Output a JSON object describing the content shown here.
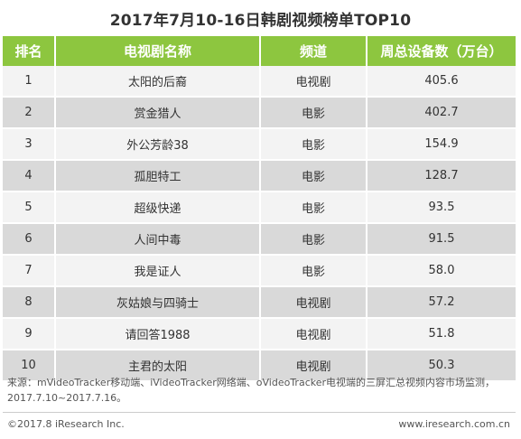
{
  "title": "2017年7月10-16日韩剧视频榜单TOP10",
  "headers": {
    "rank": "排名",
    "name": "电视剧名称",
    "channel": "频道",
    "count": "周总设备数（万台）"
  },
  "rows": [
    {
      "rank": "1",
      "name": "太阳的后裔",
      "channel": "电视剧",
      "count": "405.6"
    },
    {
      "rank": "2",
      "name": "赏金猎人",
      "channel": "电影",
      "count": "402.7"
    },
    {
      "rank": "3",
      "name": "外公芳龄38",
      "channel": "电影",
      "count": "154.9"
    },
    {
      "rank": "4",
      "name": "孤胆特工",
      "channel": "电影",
      "count": "128.7"
    },
    {
      "rank": "5",
      "name": "超级快递",
      "channel": "电影",
      "count": "93.5"
    },
    {
      "rank": "6",
      "name": "人间中毒",
      "channel": "电影",
      "count": "91.5"
    },
    {
      "rank": "7",
      "name": "我是证人",
      "channel": "电影",
      "count": "58.0"
    },
    {
      "rank": "8",
      "name": "灰姑娘与四骑士",
      "channel": "电视剧",
      "count": "57.2"
    },
    {
      "rank": "9",
      "name": "请回答1988",
      "channel": "电视剧",
      "count": "51.8"
    },
    {
      "rank": "10",
      "name": "主君的太阳",
      "channel": "电视剧",
      "count": "50.3"
    }
  ],
  "source_line1": "来源：mVideoTracker移动端、iVideoTracker网络端、oVideoTracker电视端的三屏汇总视频内容市场监测，",
  "source_line2": "2017.7.10~2017.7.16。",
  "copyright": "©2017.8 iResearch Inc.",
  "site": "www.iresearch.com.cn",
  "colors": {
    "header_bg": "#8dc63f",
    "row_light": "#f3f3f3",
    "row_dark": "#d9d9d9"
  }
}
